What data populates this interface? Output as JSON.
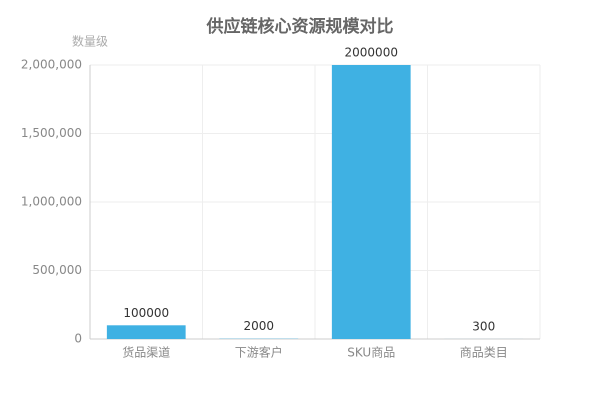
{
  "chart_data": {
    "type": "bar",
    "title": "供应链核心资源规模对比",
    "y_label": "数量级",
    "categories": [
      "货品渠道",
      "下游客户",
      "SKU商品",
      "商品类目"
    ],
    "values": [
      100000,
      2000,
      2000000,
      300
    ],
    "color": "#3fb1e3",
    "ylim": [
      0,
      2000000
    ],
    "yticks": [
      0,
      {
        "value": 500000,
        "label": "500,000"
      },
      {
        "value": 1000000,
        "label": "1,000,000"
      },
      {
        "value": 1500000,
        "label": "1,500,000"
      },
      {
        "value": 2000000,
        "label": "2,000,000"
      }
    ],
    "grid": true
  }
}
